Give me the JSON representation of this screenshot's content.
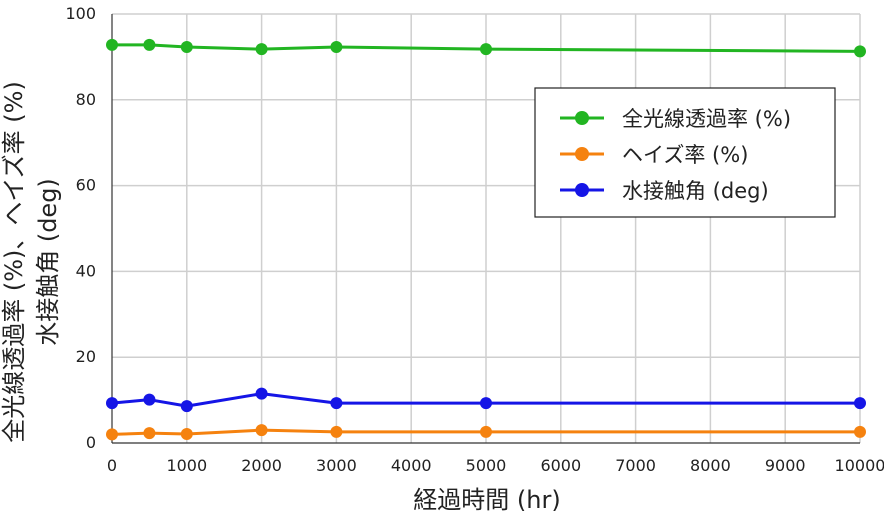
{
  "chart_data": {
    "type": "line",
    "title": "",
    "xlabel": "経過時間 (hr)",
    "ylabel_lines": [
      "全光線透過率 (%)、ヘイズ率 (%)",
      "水接触角 (deg)"
    ],
    "x": [
      0,
      500,
      1000,
      2000,
      3000,
      5000,
      10000
    ],
    "xticks": [
      "0",
      "1000",
      "2000",
      "3000",
      "4000",
      "5000",
      "6000",
      "7000",
      "8000",
      "9000",
      "10000"
    ],
    "xtick_values": [
      0,
      1000,
      2000,
      3000,
      4000,
      5000,
      6000,
      7000,
      8000,
      9000,
      10000
    ],
    "yticks": [
      "0",
      "20",
      "40",
      "60",
      "80",
      "100"
    ],
    "ytick_values": [
      0,
      20,
      40,
      60,
      80,
      100
    ],
    "ylim": [
      0,
      100
    ],
    "grid": true,
    "legend_position": "right-upper",
    "series": [
      {
        "name": "全光線透過率 (%)",
        "color": "#22b522",
        "values": [
          92.8,
          92.8,
          92.3,
          91.8,
          92.3,
          91.8,
          91.3
        ]
      },
      {
        "name": "ヘイズ率 (%)",
        "color": "#f5820f",
        "values": [
          2.0,
          2.3,
          2.1,
          3.0,
          2.6,
          2.6,
          2.6
        ]
      },
      {
        "name": "水接触角 (deg)",
        "color": "#1515e6",
        "values": [
          9.3,
          10.1,
          8.6,
          11.5,
          9.3,
          9.3,
          9.3
        ]
      }
    ]
  }
}
